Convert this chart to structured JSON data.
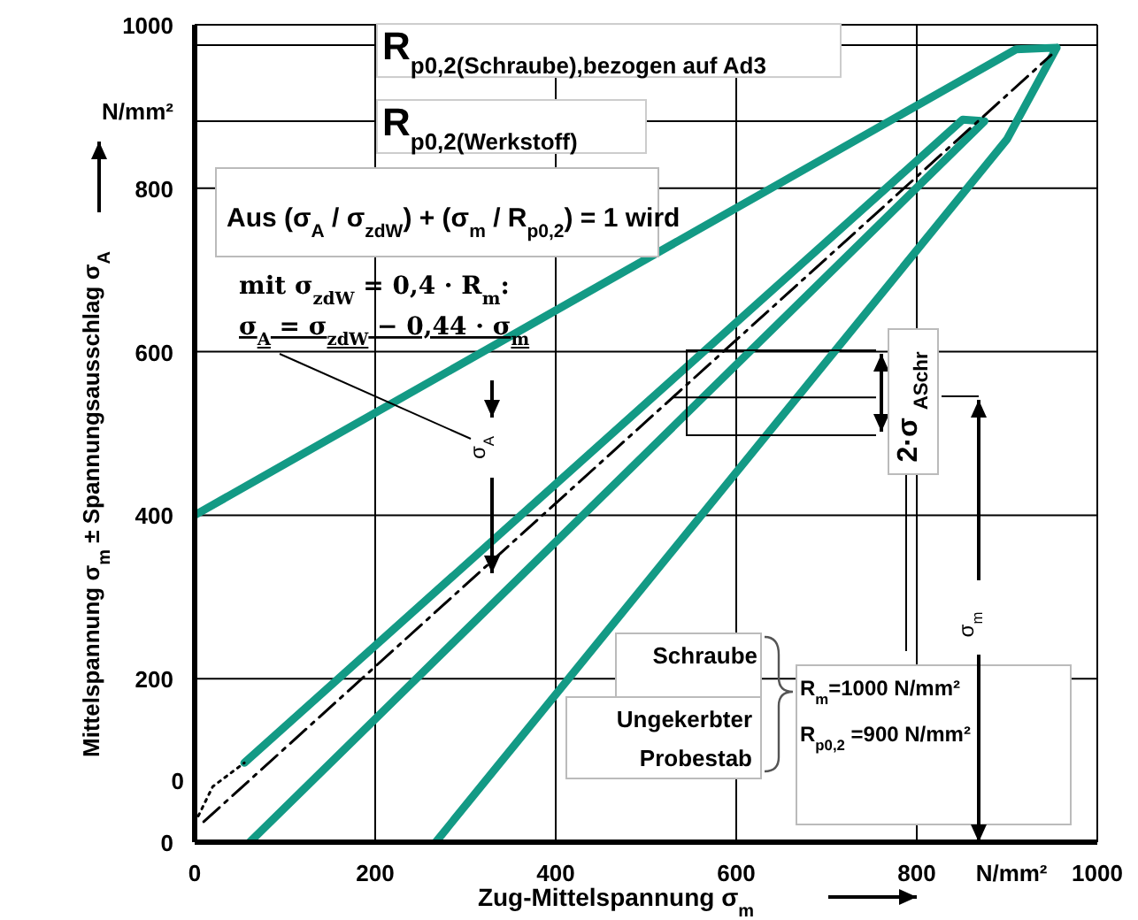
{
  "chart_data": {
    "type": "line",
    "xlabel": "Zug-Mittelspannung σ$_{m}$",
    "ylabel": "Mittelspannung σ$_{m}$ ± Spannungsausschlag σ$_{A}$",
    "xlim": [
      0,
      1000
    ],
    "ylim": [
      0,
      1000
    ],
    "xticks": [
      0,
      200,
      400,
      600,
      800,
      {
        "value": 905,
        "label": "N/mm²"
      },
      1000
    ],
    "yticks": [
      0,
      200,
      400,
      600,
      800,
      {
        "value": 895,
        "label": "N/mm²"
      },
      1000
    ],
    "grid": true,
    "series": [
      {
        "color": "#139a85",
        "x": [
          0,
          910,
          955,
          900,
          267
        ],
        "values": [
          400,
          970,
          972,
          860,
          0
        ]
      },
      {
        "color": "#139a85",
        "x": [
          55,
          851,
          875,
          61
        ],
        "values": [
          97,
          884,
          882,
          0
        ]
      },
      {
        "color": "#000000",
        "line_style": "dashed",
        "x": [
          10,
          949
        ],
        "values": [
          25,
          963
        ]
      },
      {
        "color": "#000000",
        "line_style": "dotted",
        "x": [
          4,
          20,
          55
        ],
        "values": [
          32,
          68,
          97
        ]
      }
    ],
    "ref_lines": [
      {
        "axis": "y",
        "value": 975,
        "label": "R$_{p0,2(Schraube),bezogen  auf Ad3}$"
      },
      {
        "axis": "y",
        "value": 882,
        "label": "R$_{p0,2(Werkstoff)}$"
      }
    ],
    "annotations": [
      "Aus (σ$_{A}$ / σ$_{zdW}$) + (σ$_{m}$ / R$_{p0,2}$) = 1 wird",
      "mit σ$_{zdW}$ = 0,4 · R$_{m}$:",
      "σ$_{A}$ = σ$_{zdW}$ − 0,44 · σ$_{m}$",
      "σ$_{A}$",
      {
        "text": "2·σ $_{ASchr}$",
        "x": 530,
        "y": 544
      },
      "σ$_{m}$",
      "Schraube",
      "Ungekerbter Probestab",
      "R$_{m}$=1000 N/mm²",
      "R$_{p0,2}$ =900 N/mm²",
      "0"
    ]
  }
}
